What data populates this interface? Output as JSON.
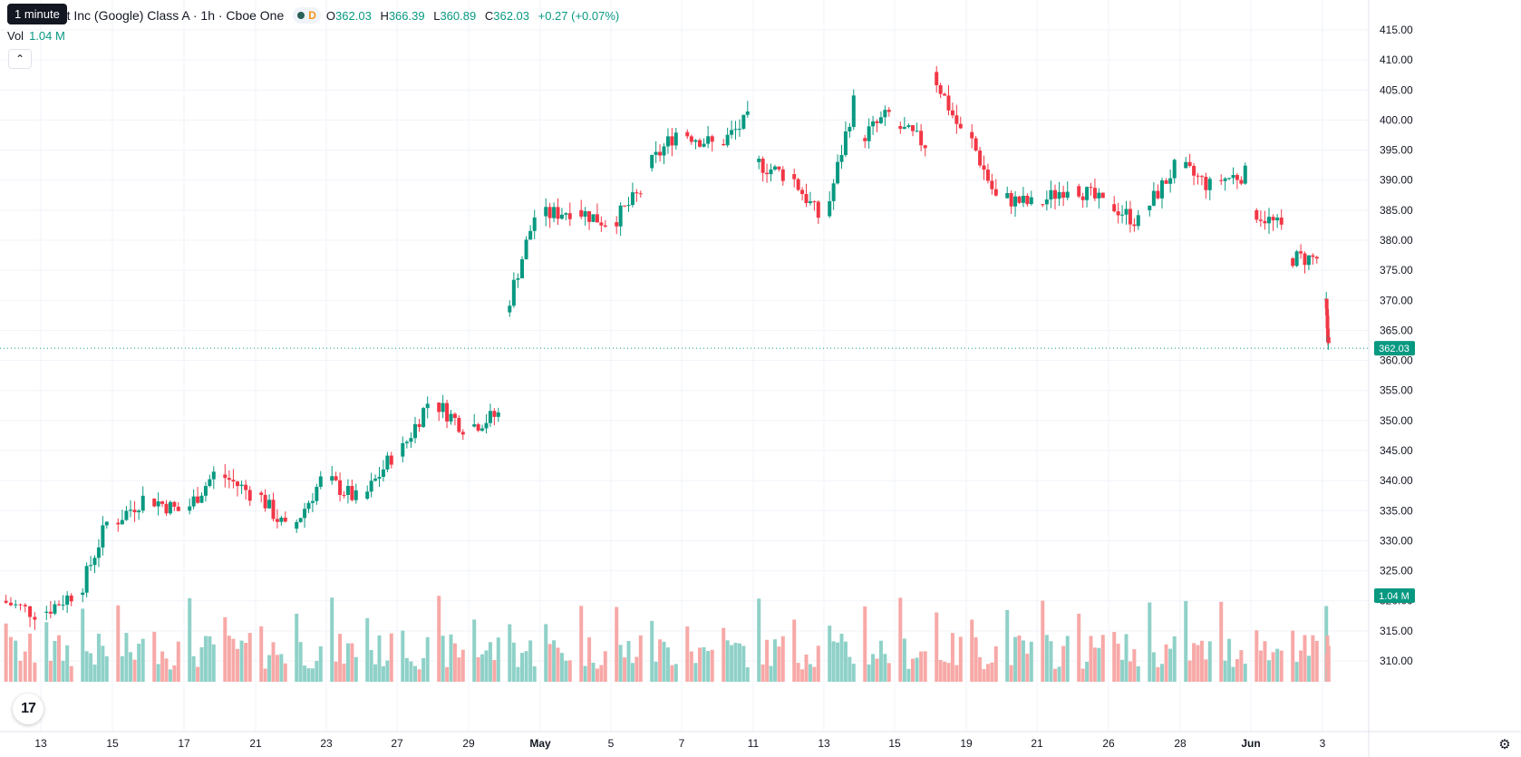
{
  "tooltip": "1 minute",
  "legend": {
    "symbol_title": "bet Inc (Google) Class A · 1h · Cboe One",
    "interval_badge": "D",
    "o_label": "O",
    "o_value": "362.03",
    "h_label": "H",
    "h_value": "366.39",
    "l_label": "L",
    "l_value": "360.89",
    "c_label": "C",
    "c_value": "362.03",
    "change": "+0.27 (+0.07%)"
  },
  "volume": {
    "label": "Vol",
    "value": "1.04 M"
  },
  "price_tag": "362.03",
  "volume_tag": "1.04 M",
  "logo_text": "17",
  "colors": {
    "up": "#089981",
    "down": "#f23645",
    "vol_up": "#8fd1c8",
    "vol_down": "#f7a9a7"
  },
  "chart_data": {
    "type": "candlestick",
    "title": "",
    "y_axis_ticks": [
      310,
      315,
      320,
      325,
      330,
      335,
      340,
      345,
      350,
      355,
      360,
      365,
      370,
      375,
      380,
      385,
      390,
      395,
      400,
      405,
      410,
      415
    ],
    "y_range": [
      306,
      418
    ],
    "x_axis_ticks": [
      {
        "label": "13",
        "bold": false
      },
      {
        "label": "15",
        "bold": false
      },
      {
        "label": "17",
        "bold": false
      },
      {
        "label": "21",
        "bold": false
      },
      {
        "label": "23",
        "bold": false
      },
      {
        "label": "27",
        "bold": false
      },
      {
        "label": "29",
        "bold": false
      },
      {
        "label": "May",
        "bold": true
      },
      {
        "label": "5",
        "bold": false
      },
      {
        "label": "7",
        "bold": false
      },
      {
        "label": "11",
        "bold": false
      },
      {
        "label": "13",
        "bold": false
      },
      {
        "label": "15",
        "bold": false
      },
      {
        "label": "19",
        "bold": false
      },
      {
        "label": "21",
        "bold": false
      },
      {
        "label": "26",
        "bold": false
      },
      {
        "label": "28",
        "bold": false
      },
      {
        "label": "Jun",
        "bold": true
      },
      {
        "label": "3",
        "bold": false
      }
    ],
    "last_price": 362.03,
    "daily_closes": [
      {
        "day": "10",
        "open": 320,
        "close": 318
      },
      {
        "day": "13",
        "open": 318,
        "close": 321
      },
      {
        "day": "14",
        "open": 321,
        "close": 333
      },
      {
        "day": "15",
        "open": 333,
        "close": 337
      },
      {
        "day": "16",
        "open": 337,
        "close": 335
      },
      {
        "day": "17",
        "open": 335,
        "close": 341
      },
      {
        "day": "20",
        "open": 341,
        "close": 338
      },
      {
        "day": "21",
        "open": 338,
        "close": 332
      },
      {
        "day": "22",
        "open": 332,
        "close": 340
      },
      {
        "day": "23",
        "open": 340,
        "close": 337
      },
      {
        "day": "24",
        "open": 337,
        "close": 344
      },
      {
        "day": "27",
        "open": 344,
        "close": 353
      },
      {
        "day": "28",
        "open": 353,
        "close": 349
      },
      {
        "day": "29",
        "open": 349,
        "close": 351
      },
      {
        "day": "30",
        "open": 368,
        "close": 384
      },
      {
        "day": "1",
        "open": 384,
        "close": 385
      },
      {
        "day": "4",
        "open": 385,
        "close": 383
      },
      {
        "day": "5",
        "open": 383,
        "close": 388
      },
      {
        "day": "6",
        "open": 392,
        "close": 398
      },
      {
        "day": "7",
        "open": 398,
        "close": 396
      },
      {
        "day": "8",
        "open": 396,
        "close": 400
      },
      {
        "day": "11",
        "open": 393,
        "close": 391
      },
      {
        "day": "12",
        "open": 391,
        "close": 384
      },
      {
        "day": "13",
        "open": 384,
        "close": 403
      },
      {
        "day": "14",
        "open": 397,
        "close": 401
      },
      {
        "day": "15",
        "open": 399,
        "close": 396
      },
      {
        "day": "18",
        "open": 408,
        "close": 398
      },
      {
        "day": "19",
        "open": 398,
        "close": 387
      },
      {
        "day": "20",
        "open": 387,
        "close": 386
      },
      {
        "day": "21",
        "open": 386,
        "close": 389
      },
      {
        "day": "22",
        "open": 389,
        "close": 386
      },
      {
        "day": "26",
        "open": 386,
        "close": 383
      },
      {
        "day": "27",
        "open": 385,
        "close": 392
      },
      {
        "day": "28",
        "open": 392,
        "close": 389
      },
      {
        "day": "29",
        "open": 390,
        "close": 391
      },
      {
        "day": "1",
        "open": 385,
        "close": 382
      },
      {
        "day": "2",
        "open": 377,
        "close": 377
      },
      {
        "day": "3",
        "open": 370,
        "close": 362
      }
    ]
  }
}
